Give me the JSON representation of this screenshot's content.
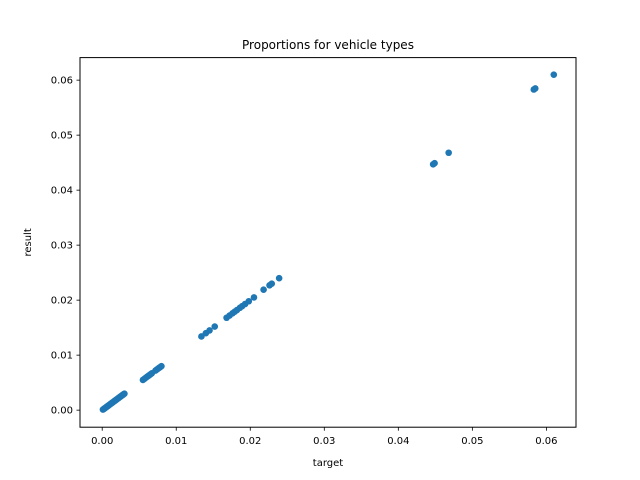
{
  "chart_data": {
    "type": "scatter",
    "title": "Proportions for vehicle types",
    "xlabel": "target",
    "ylabel": "result",
    "xlim": [
      -0.003,
      0.064
    ],
    "ylim": [
      -0.0031,
      0.0641
    ],
    "xticks": [
      0.0,
      0.01,
      0.02,
      0.03,
      0.04,
      0.05,
      0.06
    ],
    "xtick_labels": [
      "0.00",
      "0.01",
      "0.02",
      "0.03",
      "0.04",
      "0.05",
      "0.06"
    ],
    "yticks": [
      0.0,
      0.01,
      0.02,
      0.03,
      0.04,
      0.05,
      0.06
    ],
    "ytick_labels": [
      "0.00",
      "0.01",
      "0.02",
      "0.03",
      "0.04",
      "0.05",
      "0.06"
    ],
    "grid": false,
    "marker_color": "#1f77b4",
    "series": [
      {
        "x": [
          0.0001,
          0.0002,
          0.0003,
          0.0004,
          0.0005,
          0.0006,
          0.0007,
          0.0008,
          0.0009,
          0.001,
          0.0011,
          0.0012,
          0.0013,
          0.0014,
          0.0015,
          0.0016,
          0.0017,
          0.0018,
          0.0019,
          0.002,
          0.0021,
          0.0022,
          0.0023,
          0.0024,
          0.0025,
          0.0026,
          0.0027,
          0.0028,
          0.0029,
          0.003,
          0.0055,
          0.0057,
          0.0059,
          0.0061,
          0.0063,
          0.0065,
          0.0067,
          0.0072,
          0.0074,
          0.0076,
          0.0078,
          0.008,
          0.0134,
          0.014,
          0.0145,
          0.0152,
          0.0168,
          0.0172,
          0.0176,
          0.0179,
          0.0182,
          0.0186,
          0.0189,
          0.0193,
          0.0198,
          0.0205,
          0.0218,
          0.0226,
          0.0229,
          0.0239,
          0.0447,
          0.0449,
          0.0468,
          0.0583,
          0.0585,
          0.061
        ],
        "y": [
          0.0001,
          0.0002,
          0.0003,
          0.0004,
          0.0005,
          0.0006,
          0.0007,
          0.0008,
          0.0009,
          0.001,
          0.0011,
          0.0012,
          0.0013,
          0.0014,
          0.0015,
          0.0016,
          0.0017,
          0.0018,
          0.0019,
          0.002,
          0.0021,
          0.0022,
          0.0023,
          0.0024,
          0.0025,
          0.0026,
          0.0027,
          0.0028,
          0.0029,
          0.003,
          0.0055,
          0.0057,
          0.0059,
          0.0061,
          0.0063,
          0.0065,
          0.0067,
          0.0072,
          0.0074,
          0.0076,
          0.0078,
          0.008,
          0.0134,
          0.014,
          0.0145,
          0.0152,
          0.0168,
          0.0172,
          0.0176,
          0.0179,
          0.0182,
          0.0186,
          0.0189,
          0.0193,
          0.0198,
          0.0205,
          0.0219,
          0.0227,
          0.023,
          0.024,
          0.0447,
          0.0449,
          0.0468,
          0.0583,
          0.0585,
          0.061
        ]
      }
    ]
  }
}
